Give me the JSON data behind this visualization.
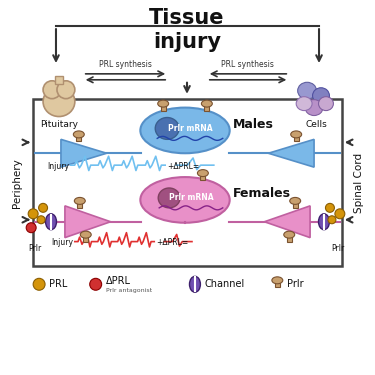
{
  "title": "Tissue\ninjury",
  "title_fontsize": 15,
  "title_fontweight": "bold",
  "bg_color": "#ffffff",
  "males_neuron_color": "#7ab8e8",
  "males_neuron_ec": "#5590c8",
  "females_neuron_color": "#e890c8",
  "females_neuron_ec": "#c060a0",
  "males_tri_color": "#7ab8e8",
  "females_tri_color": "#e890c8",
  "males_tri_ec": "#5590c8",
  "females_tri_ec": "#c060a0",
  "nucleus_male_color": "#4a70b0",
  "nucleus_female_color": "#a05080",
  "males_label": "Males",
  "females_label": "Females",
  "periphery_label": "Periphery",
  "spinal_cord_label": "Spinal Cord",
  "pituitary_label": "Pituitary",
  "cells_label": "Cells",
  "prl_synthesis_label": "PRL synthesis",
  "mRNA_label": "Prlr mRNA",
  "legend_prl": "PRL",
  "legend_dprl": "ΔPRL",
  "legend_channel": "Channel",
  "legend_prlr": "Prlr",
  "legend_dprl_sub": "Prlr antagonist",
  "injury_label": "Injury",
  "dprl_label": "+ΔPRL=",
  "prlr_label": "Prlr",
  "pituitary_color": "#dfc8a0",
  "pituitary_ec": "#b09070",
  "box_ec": "#444444",
  "arrow_color": "#333333",
  "ecg_blue": "#70c0f0",
  "ecg_red": "#e03030",
  "prl_bead_color": "#d4940a",
  "prl_bead_ec": "#8b5e02",
  "dprl_bead_color": "#d03030",
  "dprl_bead_ec": "#8b0000",
  "receptor_color": "#c8a06e",
  "receptor_ec": "#7a5230",
  "channel_color": "#7050b0",
  "channel_ec": "#3d1f6b"
}
